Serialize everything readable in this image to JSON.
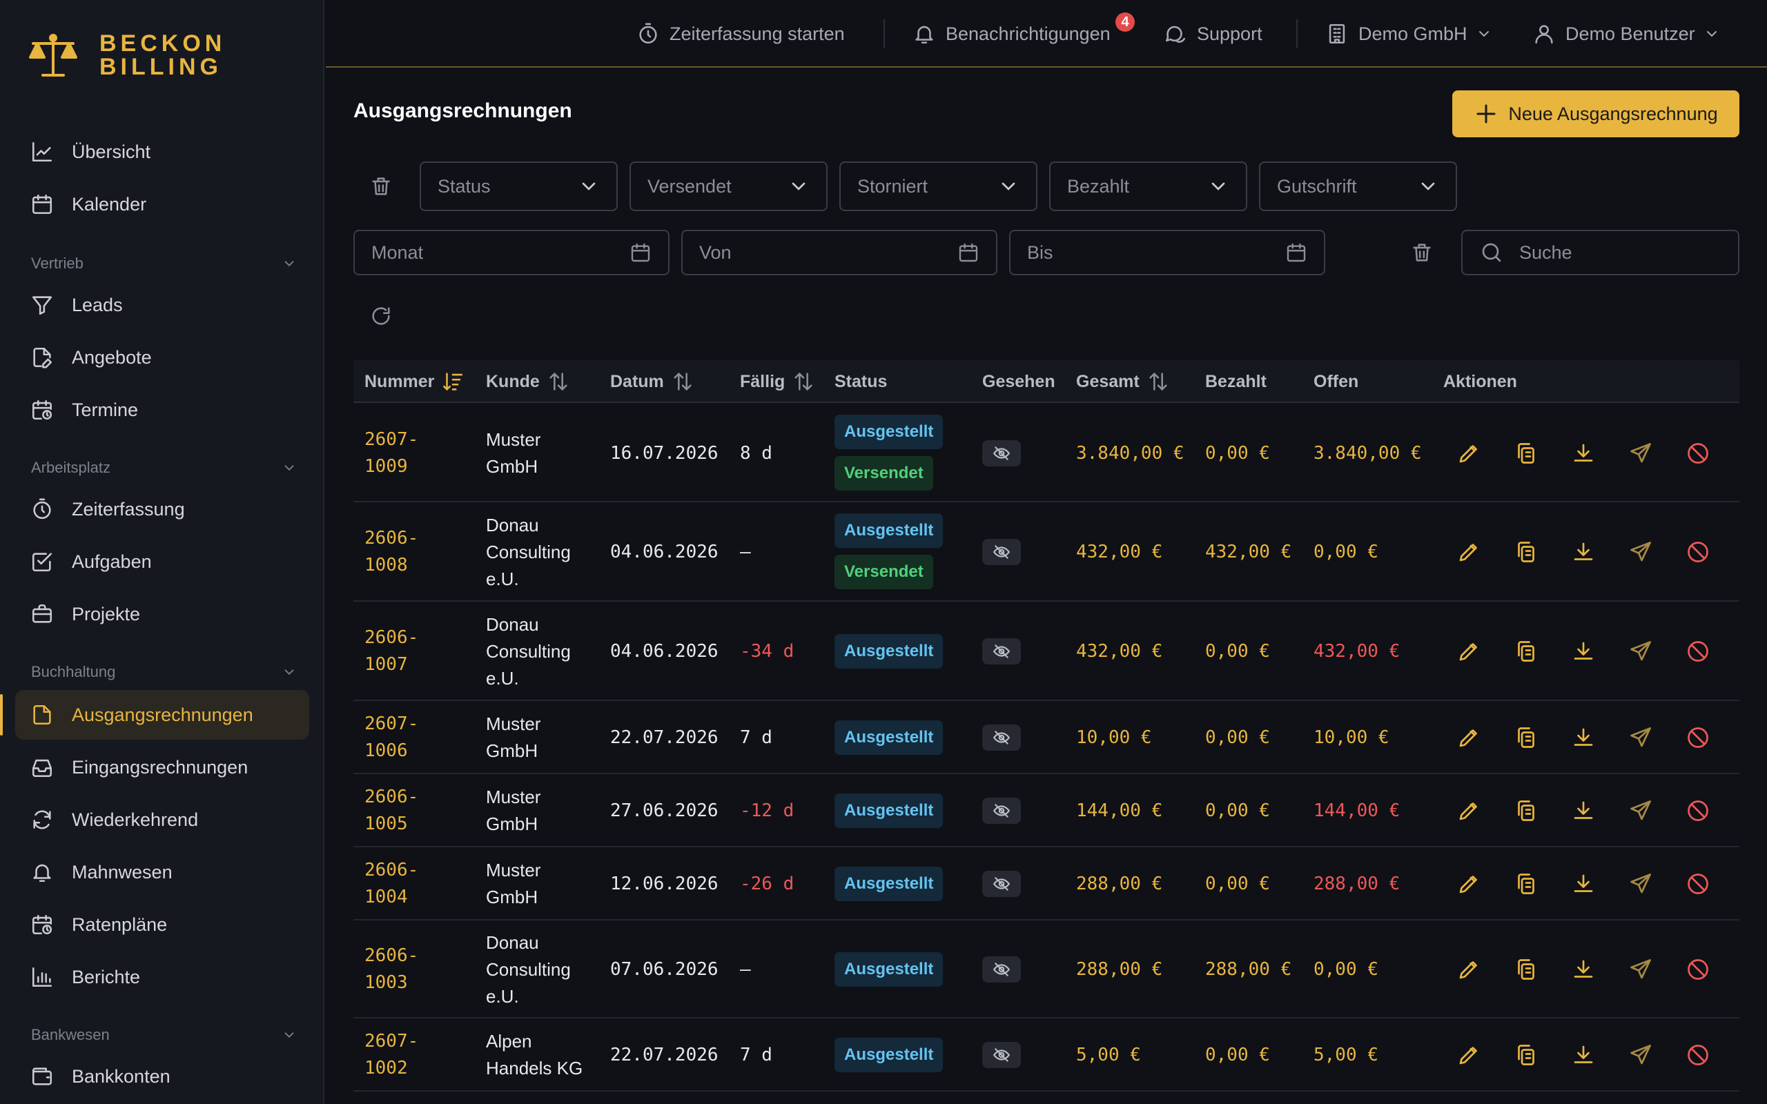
{
  "brand": {
    "line1": "BECKON",
    "line2": "BILLING",
    "color": "#e8b53f"
  },
  "nav": {
    "items_top": [
      {
        "label": "Übersicht",
        "icon": "chart-line-icon"
      },
      {
        "label": "Kalender",
        "icon": "calendar-icon"
      }
    ],
    "sections": [
      {
        "title": "Vertrieb",
        "items": [
          {
            "label": "Leads",
            "icon": "filter-icon"
          },
          {
            "label": "Angebote",
            "icon": "document-edit-icon"
          },
          {
            "label": "Termine",
            "icon": "calendar-clock-icon"
          }
        ]
      },
      {
        "title": "Arbeitsplatz",
        "items": [
          {
            "label": "Zeiterfassung",
            "icon": "stopwatch-icon"
          },
          {
            "label": "Aufgaben",
            "icon": "checkbox-icon"
          },
          {
            "label": "Projekte",
            "icon": "briefcase-icon"
          }
        ]
      },
      {
        "title": "Buchhaltung",
        "items": [
          {
            "label": "Ausgangsrechnungen",
            "icon": "document-icon",
            "active": true
          },
          {
            "label": "Eingangsrechnungen",
            "icon": "inbox-icon"
          },
          {
            "label": "Wiederkehrend",
            "icon": "refresh-icon"
          },
          {
            "label": "Mahnwesen",
            "icon": "bell-icon"
          },
          {
            "label": "Ratenpläne",
            "icon": "calendar-clock-icon"
          },
          {
            "label": "Berichte",
            "icon": "bar-chart-icon"
          }
        ]
      },
      {
        "title": "Bankwesen",
        "items": [
          {
            "label": "Bankkonten",
            "icon": "wallet-icon"
          }
        ]
      }
    ]
  },
  "topbar": {
    "timer": "Zeiterfassung starten",
    "notifications": "Benachrichtigungen",
    "notification_count": "4",
    "support": "Support",
    "company": "Demo GmbH",
    "user": "Demo Benutzer"
  },
  "page": {
    "title": "Ausgangsrechnungen",
    "new_button": "Neue Ausgangsrechnung"
  },
  "filters": {
    "selects": [
      "Status",
      "Versendet",
      "Storniert",
      "Bezahlt",
      "Gutschrift"
    ],
    "month_placeholder": "Monat",
    "from_placeholder": "Von",
    "to_placeholder": "Bis",
    "search_placeholder": "Suche"
  },
  "table": {
    "headers": {
      "nummer": "Nummer",
      "kunde": "Kunde",
      "datum": "Datum",
      "faellig": "Fällig",
      "status": "Status",
      "gesehen": "Gesehen",
      "gesamt": "Gesamt",
      "bezahlt": "Bezahlt",
      "offen": "Offen",
      "aktionen": "Aktionen"
    },
    "rows": [
      {
        "nr1": "2607-",
        "nr2": "1009",
        "kunde": [
          "Muster",
          "GmbH"
        ],
        "datum": "16.07.2026",
        "faellig": "8 d",
        "faellig_overdue": false,
        "status": [
          "Ausgestellt",
          "Versendet"
        ],
        "gesamt": "3.840,00 €",
        "bezahlt": "0,00 €",
        "offen": "3.840,00 €",
        "offen_overdue": false
      },
      {
        "nr1": "2606-",
        "nr2": "1008",
        "kunde": [
          "Donau",
          "Consulting",
          "e.U."
        ],
        "datum": "04.06.2026",
        "faellig": "—",
        "faellig_overdue": false,
        "status": [
          "Ausgestellt",
          "Versendet"
        ],
        "gesamt": "432,00 €",
        "bezahlt": "432,00 €",
        "offen": "0,00 €",
        "offen_overdue": false
      },
      {
        "nr1": "2606-",
        "nr2": "1007",
        "kunde": [
          "Donau",
          "Consulting",
          "e.U."
        ],
        "datum": "04.06.2026",
        "faellig": "-34 d",
        "faellig_overdue": true,
        "status": [
          "Ausgestellt"
        ],
        "gesamt": "432,00 €",
        "bezahlt": "0,00 €",
        "offen": "432,00 €",
        "offen_overdue": true
      },
      {
        "nr1": "2607-",
        "nr2": "1006",
        "kunde": [
          "Muster",
          "GmbH"
        ],
        "datum": "22.07.2026",
        "faellig": "7 d",
        "faellig_overdue": false,
        "status": [
          "Ausgestellt"
        ],
        "gesamt": "10,00 €",
        "bezahlt": "0,00 €",
        "offen": "10,00 €",
        "offen_overdue": false
      },
      {
        "nr1": "2606-",
        "nr2": "1005",
        "kunde": [
          "Muster",
          "GmbH"
        ],
        "datum": "27.06.2026",
        "faellig": "-12 d",
        "faellig_overdue": true,
        "status": [
          "Ausgestellt"
        ],
        "gesamt": "144,00 €",
        "bezahlt": "0,00 €",
        "offen": "144,00 €",
        "offen_overdue": true
      },
      {
        "nr1": "2606-",
        "nr2": "1004",
        "kunde": [
          "Muster",
          "GmbH"
        ],
        "datum": "12.06.2026",
        "faellig": "-26 d",
        "faellig_overdue": true,
        "status": [
          "Ausgestellt"
        ],
        "gesamt": "288,00 €",
        "bezahlt": "0,00 €",
        "offen": "288,00 €",
        "offen_overdue": true
      },
      {
        "nr1": "2606-",
        "nr2": "1003",
        "kunde": [
          "Donau",
          "Consulting",
          "e.U."
        ],
        "datum": "07.06.2026",
        "faellig": "—",
        "faellig_overdue": false,
        "status": [
          "Ausgestellt"
        ],
        "gesamt": "288,00 €",
        "bezahlt": "288,00 €",
        "offen": "0,00 €",
        "offen_overdue": false
      },
      {
        "nr1": "2607-",
        "nr2": "1002",
        "kunde": [
          "Alpen",
          "Handels KG"
        ],
        "datum": "22.07.2026",
        "faellig": "7 d",
        "faellig_overdue": false,
        "status": [
          "Ausgestellt"
        ],
        "gesamt": "5,00 €",
        "bezahlt": "0,00 €",
        "offen": "5,00 €",
        "offen_overdue": false
      }
    ]
  },
  "colors": {
    "accent": "#e8b53f",
    "overdue": "#ef5757",
    "badge_issued": "#64c3f0",
    "badge_sent": "#4fd17a",
    "storno": "#ef5757"
  }
}
